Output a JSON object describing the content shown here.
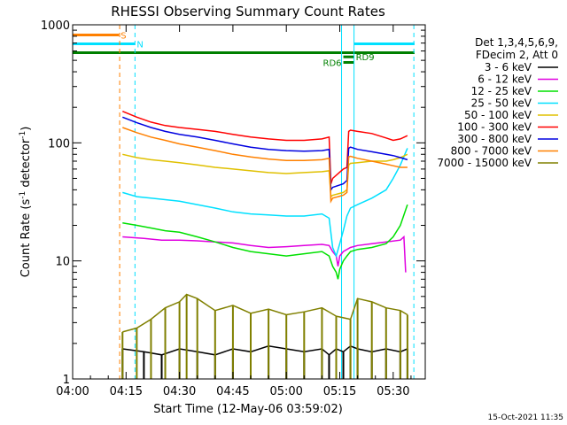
{
  "chart_data": {
    "type": "line",
    "title": "RHESSI Observing Summary Count Rates",
    "xlabel": "Start Time (12-May-06 03:59:02)",
    "ylabel": "Count Rate (s⁻¹ detector⁻¹)",
    "ylabel_main": "Count Rate (s",
    "ylabel_sup1": "-1",
    "ylabel_mid": " detector",
    "ylabel_sup2": "-1",
    "ylabel_end": ")",
    "y_scale": "log",
    "ylim": [
      1,
      1000
    ],
    "xlim_minutes": [
      0,
      99
    ],
    "x_ticks": [
      {
        "label": "04:00",
        "minutes": 0
      },
      {
        "label": "04:15",
        "minutes": 15
      },
      {
        "label": "04:30",
        "minutes": 30
      },
      {
        "label": "04:45",
        "minutes": 45
      },
      {
        "label": "05:00",
        "minutes": 60
      },
      {
        "label": "05:15",
        "minutes": 75
      },
      {
        "label": "05:30",
        "minutes": 90
      }
    ],
    "y_ticks": [
      {
        "label": "1",
        "value": 1
      },
      {
        "label": "10",
        "value": 10
      },
      {
        "label": "100",
        "value": 100
      },
      {
        "label": "1000",
        "value": 1000
      }
    ],
    "legend_header": [
      "Det 1,3,4,5,6,9,",
      "FDecim 2, Att 0"
    ],
    "legend_placement": "right",
    "series": [
      {
        "name": "3 - 6 keV",
        "color": "#000000",
        "kind": "sparse",
        "level": 1.8,
        "x": [
          14,
          20,
          25,
          30,
          35,
          40,
          45,
          50,
          55,
          60,
          65,
          70,
          72,
          74,
          76,
          78,
          80,
          84,
          88,
          92,
          94
        ],
        "y": [
          1.8,
          1.7,
          1.6,
          1.8,
          1.7,
          1.6,
          1.8,
          1.7,
          1.9,
          1.8,
          1.7,
          1.8,
          1.6,
          1.8,
          1.7,
          1.9,
          1.8,
          1.7,
          1.8,
          1.7,
          1.8
        ]
      },
      {
        "name": "6 - 12 keV",
        "color": "#e000e0",
        "kind": "line",
        "x": [
          14,
          20,
          25,
          30,
          35,
          40,
          45,
          50,
          55,
          60,
          65,
          70,
          72,
          73,
          74,
          74.5,
          75,
          76,
          78,
          80,
          84,
          88,
          92,
          93,
          93.5
        ],
        "y": [
          16,
          15.5,
          15,
          15,
          14.8,
          14.5,
          14.2,
          13.5,
          13,
          13.2,
          13.5,
          13.8,
          13.5,
          12,
          11,
          9,
          11,
          12,
          13,
          13.5,
          14,
          14.5,
          15,
          16,
          8
        ]
      },
      {
        "name": "12 - 25 keV",
        "color": "#00e000",
        "kind": "line",
        "x": [
          14,
          18,
          22,
          26,
          30,
          35,
          40,
          45,
          50,
          55,
          60,
          65,
          70,
          72,
          73,
          74,
          74.5,
          75,
          76,
          77,
          78,
          80,
          84,
          88,
          90,
          92,
          94
        ],
        "y": [
          21,
          20,
          19,
          18,
          17.5,
          16,
          14.5,
          13,
          12,
          11.5,
          11,
          11.5,
          12,
          11,
          9,
          8,
          7,
          8.5,
          10,
          11,
          12,
          12.5,
          13,
          14,
          16,
          20,
          30
        ]
      },
      {
        "name": "25 - 50 keV",
        "color": "#00e0ff",
        "kind": "line",
        "x": [
          14,
          18,
          22,
          26,
          30,
          35,
          40,
          45,
          50,
          55,
          60,
          65,
          70,
          72,
          73,
          74,
          75,
          76,
          77,
          78,
          80,
          84,
          88,
          90,
          92,
          94
        ],
        "y": [
          38,
          35,
          34,
          33,
          32,
          30,
          28,
          26,
          25,
          24.5,
          24,
          24,
          25,
          23,
          13,
          11,
          14,
          18,
          24,
          28,
          30,
          34,
          40,
          50,
          65,
          90
        ]
      },
      {
        "name": "50 - 100 keV",
        "color": "#e0c000",
        "kind": "line",
        "x": [
          14,
          18,
          22,
          26,
          30,
          35,
          40,
          45,
          50,
          55,
          60,
          65,
          70,
          72,
          72.5,
          73,
          76,
          77,
          77.5,
          78,
          80,
          84,
          88,
          90,
          92,
          94
        ],
        "y": [
          80,
          75,
          72,
          70,
          68,
          65,
          62,
          60,
          58,
          56,
          55,
          56,
          57,
          58,
          35,
          36,
          38,
          40,
          65,
          67,
          68,
          70,
          70,
          72,
          75,
          80
        ]
      },
      {
        "name": "100 - 300 keV",
        "color": "#ff0000",
        "kind": "line",
        "x": [
          14,
          18,
          22,
          26,
          30,
          35,
          40,
          45,
          50,
          55,
          60,
          65,
          70,
          72,
          72.5,
          73,
          76,
          77,
          77.5,
          78,
          80,
          84,
          88,
          90,
          92,
          94
        ],
        "y": [
          185,
          165,
          150,
          140,
          135,
          130,
          125,
          118,
          112,
          108,
          105,
          105,
          108,
          112,
          45,
          50,
          60,
          62,
          125,
          128,
          125,
          120,
          110,
          105,
          108,
          115
        ]
      },
      {
        "name": "300 - 800 keV",
        "color": "#0000e0",
        "kind": "line",
        "x": [
          14,
          18,
          22,
          26,
          30,
          35,
          40,
          45,
          50,
          55,
          60,
          65,
          70,
          72,
          72.5,
          73,
          76,
          77,
          77.5,
          78,
          80,
          84,
          88,
          90,
          92,
          94
        ],
        "y": [
          165,
          148,
          135,
          125,
          118,
          112,
          105,
          98,
          92,
          88,
          86,
          85,
          86,
          88,
          40,
          42,
          45,
          48,
          90,
          92,
          88,
          84,
          80,
          78,
          75,
          72
        ]
      },
      {
        "name": "800 - 7000 keV",
        "color": "#ff8000",
        "kind": "line",
        "x": [
          14,
          18,
          22,
          26,
          30,
          35,
          40,
          45,
          50,
          55,
          60,
          65,
          70,
          72,
          72.5,
          73,
          76,
          77,
          77.5,
          78,
          80,
          84,
          88,
          90,
          92,
          94
        ],
        "y": [
          135,
          122,
          112,
          105,
          98,
          92,
          86,
          80,
          76,
          73,
          71,
          71,
          72,
          74,
          32,
          34,
          36,
          38,
          76,
          77,
          74,
          70,
          66,
          64,
          62,
          62
        ]
      },
      {
        "name": "7000 - 15000 keV",
        "color": "#808000",
        "kind": "sparse",
        "level": 3.5,
        "x": [
          14,
          18,
          22,
          26,
          30,
          32,
          35,
          40,
          45,
          50,
          55,
          60,
          65,
          70,
          74,
          78,
          80,
          84,
          88,
          92,
          94
        ],
        "y": [
          2.5,
          2.7,
          3.2,
          4.0,
          4.5,
          5.2,
          4.8,
          3.8,
          4.2,
          3.6,
          3.9,
          3.5,
          3.7,
          4.0,
          3.4,
          3.2,
          4.8,
          4.5,
          4.0,
          3.8,
          3.5
        ]
      }
    ],
    "state_bars": [
      {
        "label": "S",
        "color": "#ff8000",
        "start": 0,
        "end": 13,
        "level": 820
      },
      {
        "label": "N",
        "color": "#00e0ff",
        "start": 0,
        "end": 17.5,
        "level": 690
      },
      {
        "label": "",
        "color": "#00e0ff",
        "start": 79,
        "end": 96,
        "level": 690
      },
      {
        "label": "",
        "color": "#008000",
        "start": 0,
        "end": 96,
        "level": 580
      },
      {
        "label": "RD9",
        "color": "#008000",
        "start": 76,
        "end": 79,
        "level": 535
      },
      {
        "label": "RD6",
        "color": "#008000",
        "start": 76,
        "end": 79,
        "level": 480
      }
    ],
    "vlines": [
      {
        "minutes": 13.2,
        "color": "#ff8000",
        "dash": true
      },
      {
        "minutes": 17.5,
        "color": "#00e0ff",
        "dash": true
      },
      {
        "minutes": 75.5,
        "color": "#00e0ff",
        "dash": false
      },
      {
        "minutes": 79.0,
        "color": "#00e0ff",
        "dash": false
      },
      {
        "minutes": 95.8,
        "color": "#00e0ff",
        "dash": true
      }
    ]
  },
  "footer": {
    "timestamp": "15-Oct-2021 11:35"
  }
}
